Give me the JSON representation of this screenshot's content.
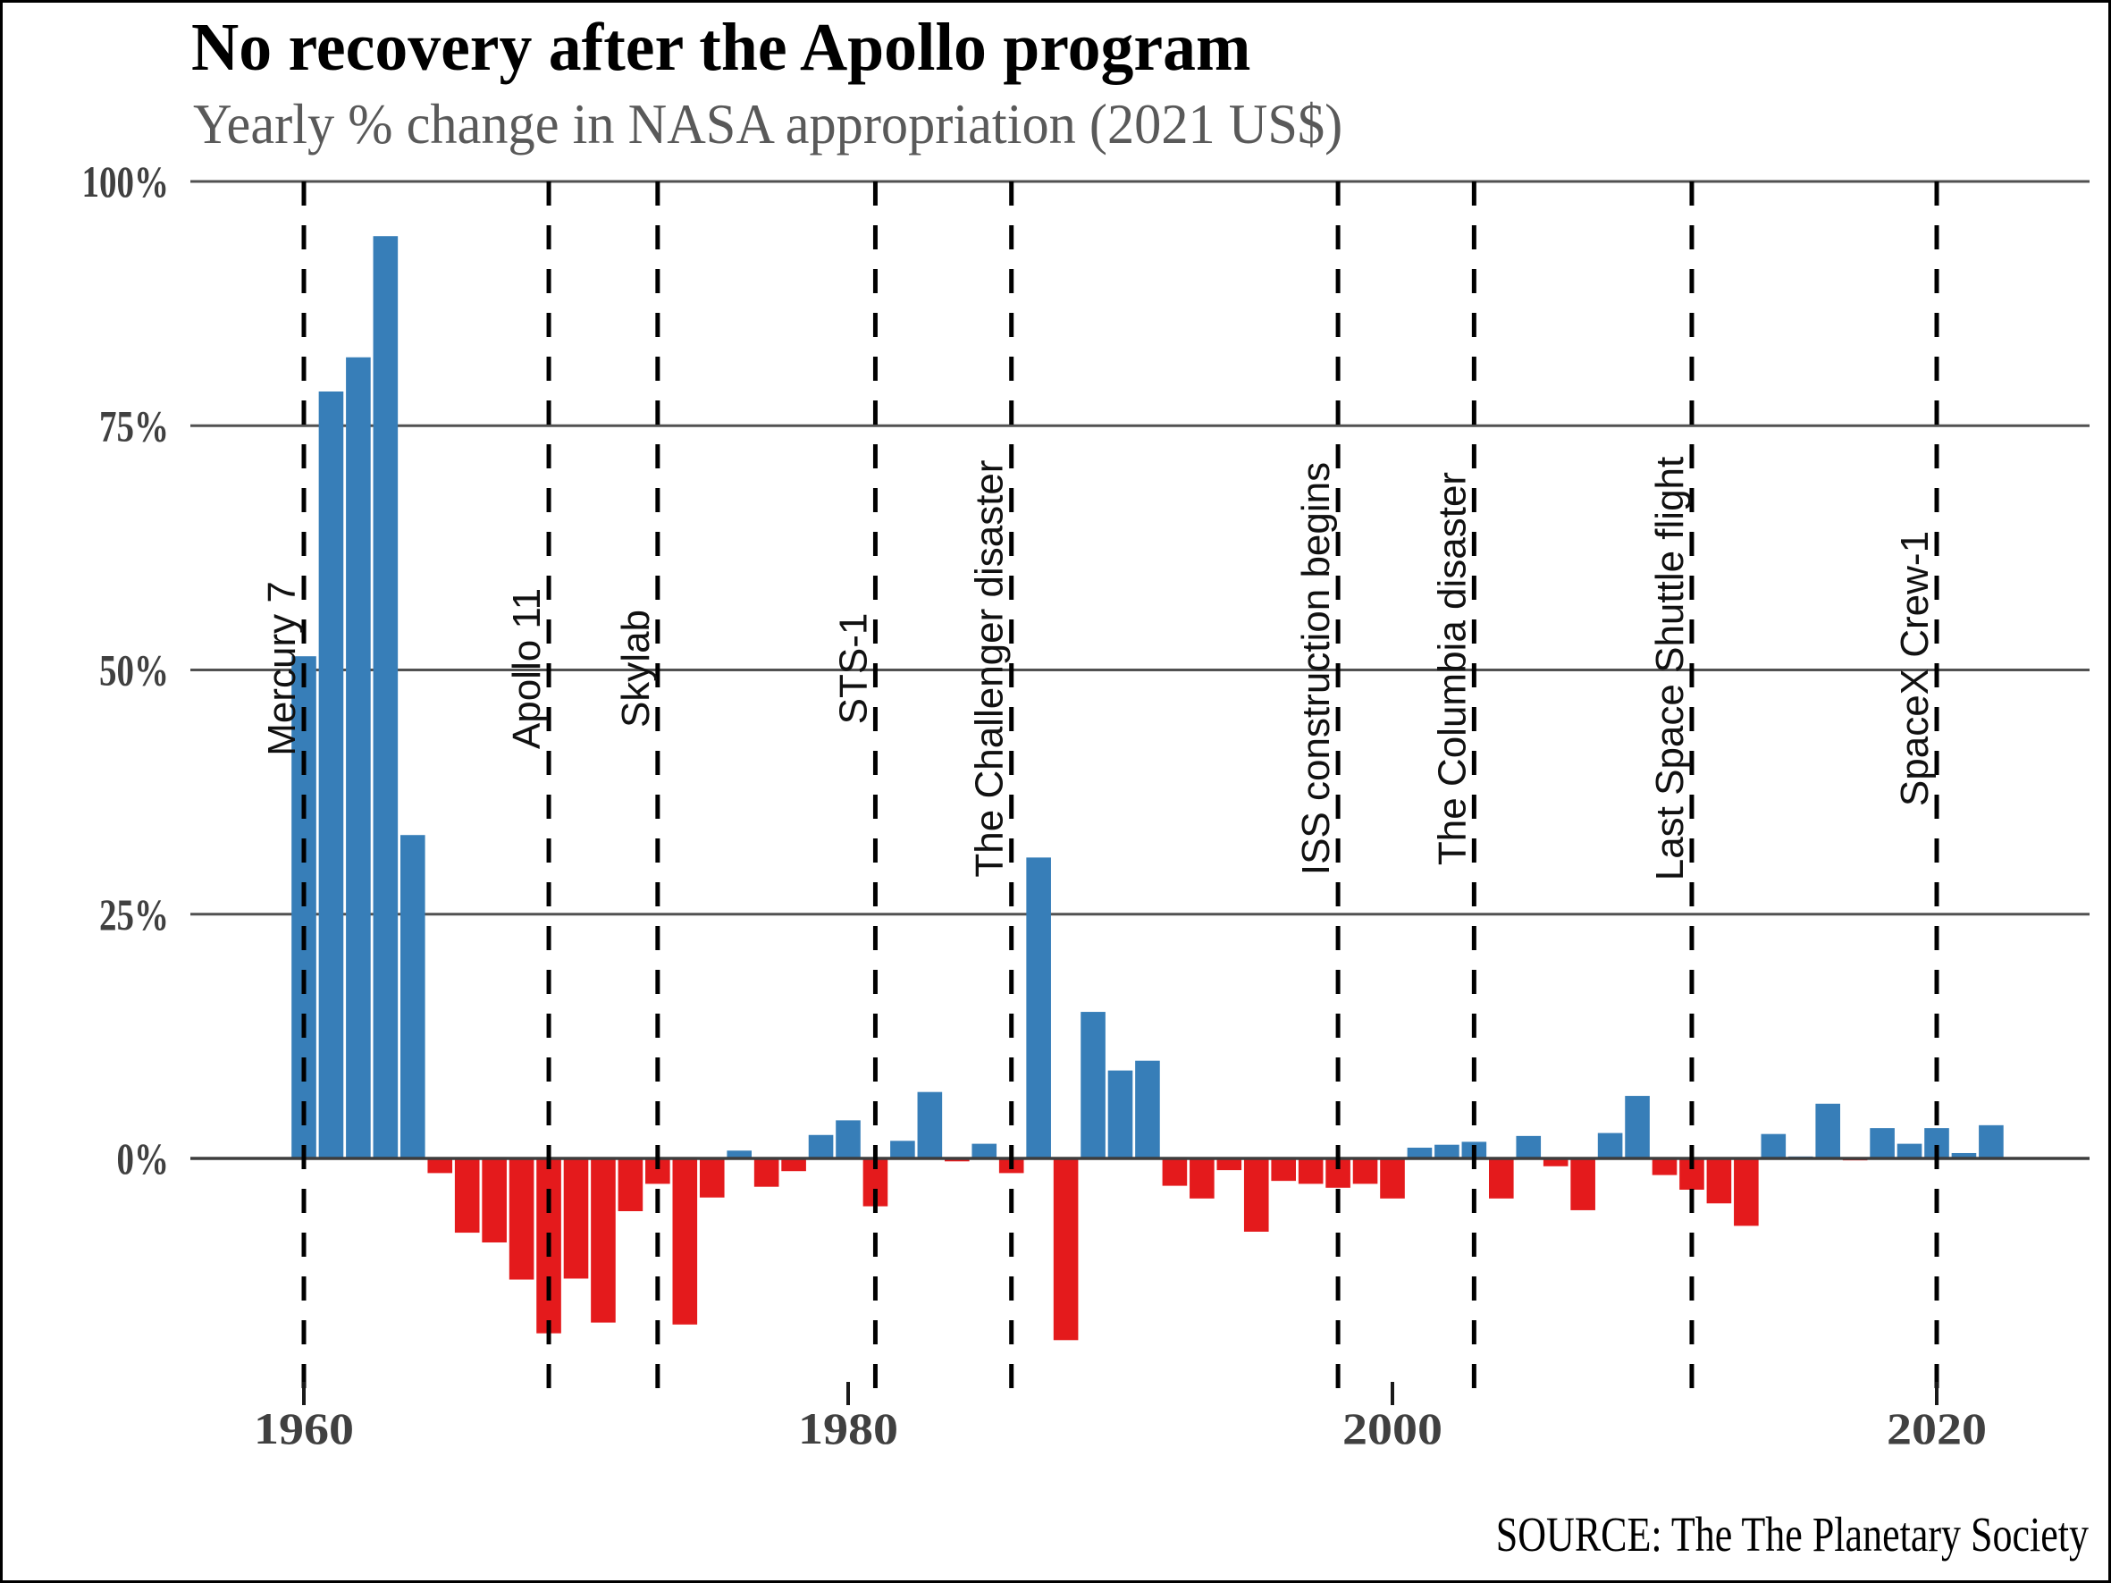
{
  "title": "No recovery after the Apollo program",
  "subtitle": "Yearly % change in NASA appropriation (2021 US$)",
  "source": "SOURCE: The The Planetary Society",
  "colors": {
    "positive_bar": "#377eb8",
    "negative_bar": "#e41a1c",
    "gridline": "#515151",
    "zero_axis": "#3d3d3d",
    "tick_mark": "#1a1a1a",
    "tick_label": "#404040",
    "subtitle_text": "#595959",
    "event_line": "#000000",
    "event_label": "#111111",
    "frame_border": "#000000",
    "background": "#ffffff"
  },
  "chart_data": {
    "type": "bar",
    "title": "No recovery after the Apollo program",
    "subtitle": "Yearly % change in NASA appropriation (2021 US$)",
    "xlabel": "",
    "ylabel": "Yearly % change",
    "grid": "horizontal solid gray lines at each 25% step; 0% axis emphasized",
    "legend": "none",
    "xlim_years": [
      1955.8,
      2025.6
    ],
    "ylim_percent": [
      -23.7,
      100
    ],
    "y_ticks": [
      {
        "value": 100,
        "label": "100%"
      },
      {
        "value": 75,
        "label": "75%"
      },
      {
        "value": 50,
        "label": "50%"
      },
      {
        "value": 25,
        "label": "25%"
      },
      {
        "value": 0,
        "label": "0%"
      }
    ],
    "x_ticks": [
      {
        "year": 1960,
        "label": "1960"
      },
      {
        "year": 1980,
        "label": "1980"
      },
      {
        "year": 2000,
        "label": "2000"
      },
      {
        "year": 2020,
        "label": "2020"
      }
    ],
    "events": [
      {
        "year": 1960,
        "label": "Mercury 7"
      },
      {
        "year": 1969,
        "label": "Apollo 11"
      },
      {
        "year": 1973,
        "label": "Skylab"
      },
      {
        "year": 1981,
        "label": "STS-1"
      },
      {
        "year": 1986,
        "label": "The Challenger disaster"
      },
      {
        "year": 1998,
        "label": "ISS construction begins"
      },
      {
        "year": 2003,
        "label": "The Columbia disaster"
      },
      {
        "year": 2011,
        "label": "Last Space Shuttle flight"
      },
      {
        "year": 2020,
        "label": "SpaceX Crew-1"
      }
    ],
    "years": [
      1960,
      1961,
      1962,
      1963,
      1964,
      1965,
      1966,
      1967,
      1968,
      1969,
      1970,
      1971,
      1972,
      1973,
      1974,
      1975,
      1976,
      1977,
      1978,
      1979,
      1980,
      1981,
      1982,
      1983,
      1984,
      1985,
      1986,
      1987,
      1988,
      1989,
      1990,
      1991,
      1992,
      1993,
      1994,
      1995,
      1996,
      1997,
      1998,
      1999,
      2000,
      2001,
      2002,
      2003,
      2004,
      2005,
      2006,
      2007,
      2008,
      2009,
      2010,
      2011,
      2012,
      2013,
      2014,
      2015,
      2016,
      2017,
      2018,
      2019,
      2020,
      2021,
      2022
    ],
    "values": [
      51.4,
      78.5,
      82.0,
      94.4,
      33.1,
      -1.5,
      -7.6,
      -8.6,
      -12.4,
      -17.9,
      -12.3,
      -16.8,
      -5.4,
      -2.6,
      -17.0,
      -4.0,
      0.8,
      -2.9,
      -1.3,
      2.4,
      3.9,
      -4.9,
      1.8,
      6.8,
      -0.3,
      1.5,
      -1.5,
      30.8,
      -18.6,
      15.0,
      9.0,
      10.0,
      -2.8,
      -4.1,
      -1.2,
      -7.5,
      -2.3,
      -2.6,
      -3.0,
      -2.6,
      -4.1,
      1.1,
      1.4,
      1.7,
      -4.1,
      2.3,
      -0.8,
      -5.3,
      2.6,
      6.4,
      -1.7,
      -3.2,
      -4.6,
      -6.9,
      2.5,
      0.2,
      5.6,
      -0.2,
      3.1,
      1.5,
      3.1,
      0.55,
      3.4
    ]
  }
}
